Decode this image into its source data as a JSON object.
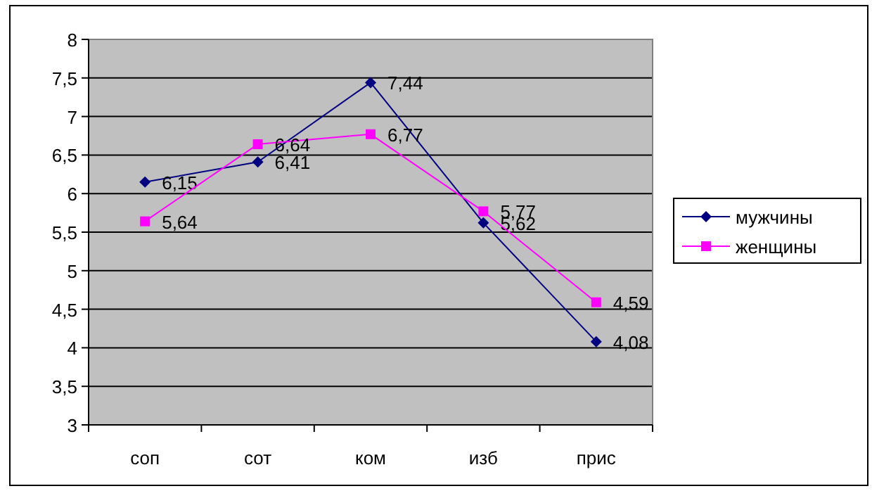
{
  "chart_data": {
    "type": "line",
    "categories": [
      "соп",
      "сот",
      "ком",
      "изб",
      "прис"
    ],
    "series": [
      {
        "name": "мужчины",
        "color": "#000080",
        "marker": "diamond",
        "values": [
          6.15,
          6.41,
          7.44,
          5.62,
          4.08
        ],
        "value_labels": [
          "6,15",
          "6,41",
          "7,44",
          "5,62",
          "4,08"
        ]
      },
      {
        "name": "женщины",
        "color": "#ff00ff",
        "marker": "square",
        "values": [
          5.64,
          6.64,
          6.77,
          5.77,
          4.59
        ],
        "value_labels": [
          "5,64",
          "6,64",
          "6,77",
          "5,77",
          "4,59"
        ]
      }
    ],
    "ylim": [
      3,
      8
    ],
    "yticks": [
      3,
      {
        "value": 3.5,
        "label": "3,5"
      },
      4,
      {
        "value": 4.5,
        "label": "4,5"
      },
      5,
      {
        "value": 5.5,
        "label": "5,5"
      },
      6,
      {
        "value": 6.5,
        "label": "6,5"
      },
      7,
      {
        "value": 7.5,
        "label": "7,5"
      },
      8
    ],
    "grid": "y",
    "legend": "right"
  }
}
